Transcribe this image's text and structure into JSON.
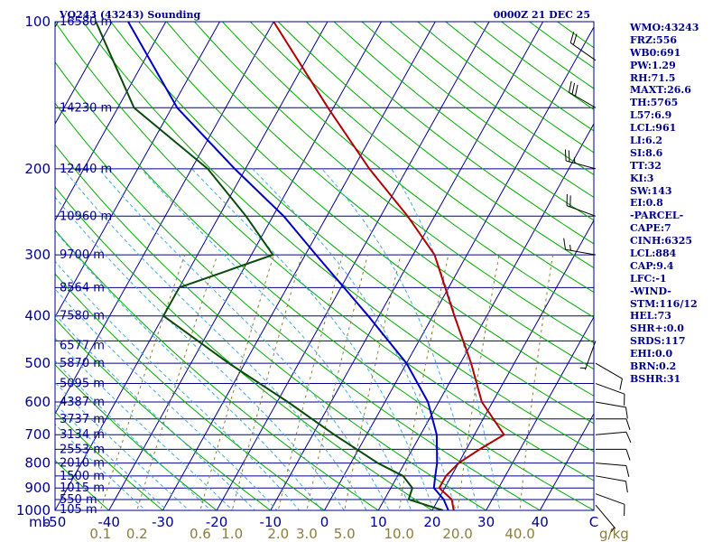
{
  "header": {
    "title": "VQ243 (43243) Sounding",
    "time": "0000Z 21 DEC 25"
  },
  "indices": [
    "WMO:43243",
    "FRZ:556",
    "WB0:691",
    "PW:1.29",
    "RH:71.5",
    "MAXT:26.6",
    "TH:5765",
    "L57:6.9",
    "LCL:961",
    "LI:6.2",
    "SI:8.6",
    "TT:32",
    "KI:3",
    "SW:143",
    "EI:0.8",
    "-PARCEL-",
    "CAPE:7",
    "CINH:6325",
    "LCL:884",
    "CAP:9.4",
    "LFC:-1",
    "-WIND-",
    "STM:116/12",
    "HEL:73",
    "SHR+:0.0",
    "SRDS:117",
    "EHI:0.0",
    "BRN:0.2",
    "BSHR:31"
  ],
  "colors": {
    "frame": "#00008b",
    "isobar": "#00008b",
    "isotherm": "#00008b",
    "dry_adiabat": "#00aa00",
    "moist_adiabat": "#44aadd",
    "mixing_ratio": "#8b7d3a",
    "temperature": "#b00000",
    "dewpoint": "#0a4a0a",
    "parcel": "#0000c0",
    "wind": "#000000"
  },
  "chart_data": {
    "type": "line",
    "title": "VQ243 (43243) Sounding",
    "xlabel": "",
    "ylabel": "mb",
    "y_scale": "log",
    "ylim": [
      1000,
      100
    ],
    "xlim": [
      -50,
      50
    ],
    "pressure_ticks": [
      "100",
      "200",
      "300",
      "400",
      "500",
      "600",
      "700",
      "800",
      "900",
      "1000"
    ],
    "y_unit_label": "mb",
    "temp_ticks": [
      "-50",
      "-40",
      "-30",
      "-20",
      "-10",
      "0",
      "10",
      "20",
      "30",
      "40",
      "C"
    ],
    "mixing_ratio_ticks": [
      "0.1",
      "0.2",
      "0.6",
      "1.0",
      "2.0",
      "3.0",
      "5.0",
      "10.0",
      "20.0",
      "40.0",
      "g/kg"
    ],
    "height_levels": [
      {
        "label": "105 m",
        "p": 995
      },
      {
        "label": "550 m",
        "p": 950
      },
      {
        "label": "1015 m",
        "p": 900
      },
      {
        "label": "1500 m",
        "p": 850
      },
      {
        "label": "2010 m",
        "p": 800
      },
      {
        "label": "2553 m",
        "p": 750
      },
      {
        "label": "3134 m",
        "p": 700
      },
      {
        "label": "3737 m",
        "p": 650
      },
      {
        "label": "4387 m",
        "p": 600
      },
      {
        "label": "5095 m",
        "p": 550
      },
      {
        "label": "5870 m",
        "p": 500
      },
      {
        "label": "6577 m",
        "p": 460
      },
      {
        "label": "7580 m",
        "p": 400
      },
      {
        "label": "8564 m",
        "p": 350
      },
      {
        "label": "9700 m",
        "p": 300
      },
      {
        "label": "10960 m",
        "p": 250
      },
      {
        "label": "12440 m",
        "p": 200
      },
      {
        "label": "14230 m",
        "p": 150
      },
      {
        "label": "16580 m",
        "p": 100
      }
    ],
    "series": [
      {
        "role": "temperature",
        "points": [
          [
            1000,
            24
          ],
          [
            950,
            22.5
          ],
          [
            900,
            19
          ],
          [
            850,
            19
          ],
          [
            800,
            20
          ],
          [
            750,
            22.5
          ],
          [
            700,
            25.5
          ],
          [
            600,
            18
          ],
          [
            500,
            12
          ],
          [
            400,
            4
          ],
          [
            300,
            -6
          ],
          [
            250,
            -15
          ],
          [
            200,
            -27
          ],
          [
            150,
            -41
          ],
          [
            100,
            -60
          ]
        ]
      },
      {
        "role": "dewpoint",
        "points": [
          [
            1000,
            22
          ],
          [
            950,
            14.5
          ],
          [
            900,
            14
          ],
          [
            850,
            11
          ],
          [
            800,
            5
          ],
          [
            700,
            -6
          ],
          [
            600,
            -18
          ],
          [
            500,
            -33
          ],
          [
            400,
            -50
          ],
          [
            350,
            -50
          ],
          [
            300,
            -36
          ],
          [
            250,
            -45
          ],
          [
            200,
            -57
          ],
          [
            150,
            -77
          ],
          [
            100,
            -93
          ]
        ]
      },
      {
        "role": "parcel",
        "points": [
          [
            1000,
            23
          ],
          [
            950,
            21
          ],
          [
            900,
            18
          ],
          [
            850,
            17
          ],
          [
            800,
            16
          ],
          [
            700,
            13
          ],
          [
            600,
            8
          ],
          [
            500,
            0
          ],
          [
            400,
            -12
          ],
          [
            300,
            -28
          ],
          [
            250,
            -38
          ],
          [
            200,
            -52
          ],
          [
            150,
            -69
          ],
          [
            100,
            -87
          ]
        ]
      }
    ],
    "wind_barbs": [
      {
        "p": 975,
        "dir": 140,
        "kt": 5
      },
      {
        "p": 925,
        "dir": 110,
        "kt": 10
      },
      {
        "p": 850,
        "dir": 100,
        "kt": 10
      },
      {
        "p": 800,
        "dir": 95,
        "kt": 10
      },
      {
        "p": 750,
        "dir": 90,
        "kt": 10
      },
      {
        "p": 700,
        "dir": 85,
        "kt": 10
      },
      {
        "p": 650,
        "dir": 90,
        "kt": 10
      },
      {
        "p": 600,
        "dir": 100,
        "kt": 10
      },
      {
        "p": 550,
        "dir": 110,
        "kt": 10
      },
      {
        "p": 500,
        "dir": 120,
        "kt": 10
      },
      {
        "p": 450,
        "dir": 200,
        "kt": 5
      },
      {
        "p": 300,
        "dir": 280,
        "kt": 15
      },
      {
        "p": 250,
        "dir": 290,
        "kt": 20
      },
      {
        "p": 200,
        "dir": 285,
        "kt": 25
      },
      {
        "p": 150,
        "dir": 300,
        "kt": 30
      },
      {
        "p": 120,
        "dir": 305,
        "kt": 20
      }
    ]
  }
}
